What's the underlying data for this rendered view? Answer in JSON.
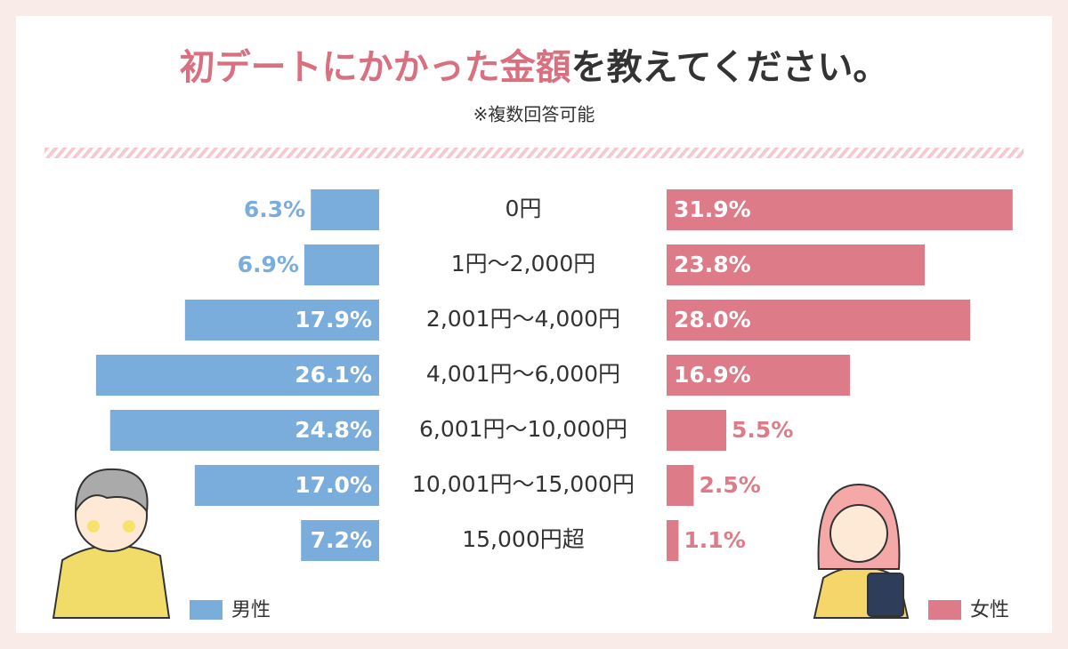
{
  "chart_data": {
    "type": "butterfly-bar",
    "title": {
      "highlight": "初デートにかかった金額",
      "rest": "を教えてください。"
    },
    "subtitle": "※複数回答可能",
    "categories": [
      "0円",
      "1円〜2,000円",
      "2,001円〜4,000円",
      "4,001円〜6,000円",
      "6,001円〜10,000円",
      "10,001円〜15,000円",
      "15,000円超"
    ],
    "xlim": [
      0,
      32
    ],
    "series": [
      {
        "name": "男性",
        "color": "#7aacdc",
        "side": "left",
        "values": [
          6.3,
          6.9,
          17.9,
          26.1,
          24.8,
          17.0,
          7.2
        ],
        "value_labels": [
          "6.3%",
          "6.9%",
          "17.9%",
          "26.1%",
          "24.8%",
          "17.0%",
          "7.2%"
        ]
      },
      {
        "name": "女性",
        "color": "#de7b88",
        "side": "right",
        "values": [
          31.9,
          23.8,
          28.0,
          16.9,
          5.5,
          2.5,
          1.1
        ],
        "value_labels": [
          "31.9%",
          "23.8%",
          "28.0%",
          "16.9%",
          "5.5%",
          "2.5%",
          "1.1%"
        ]
      }
    ]
  }
}
